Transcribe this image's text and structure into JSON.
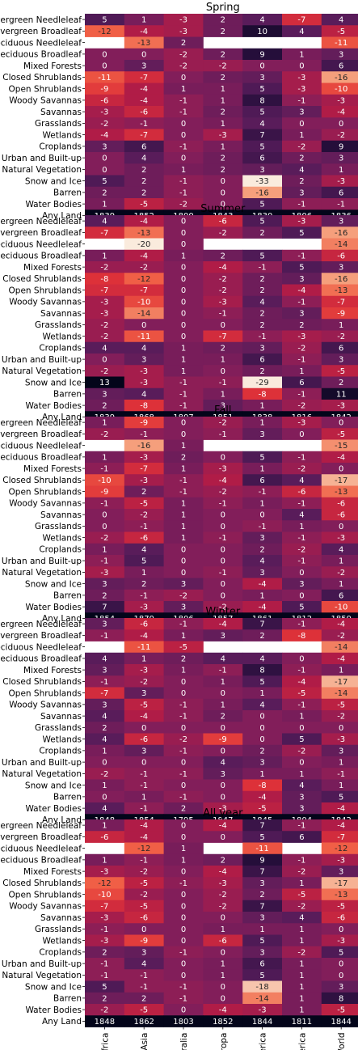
{
  "chart_data": {
    "type": "heatmap",
    "columns": [
      "Africa",
      "Asia",
      "Australia",
      "Europa",
      "N. America",
      "S. America",
      "World"
    ],
    "rows": [
      "Evergreen Needleleaf",
      "Evergreen Broadleaf",
      "Deciduous Needleleaf",
      "Deciduous Broadleaf",
      "Mixed Forests",
      "Closed Shrublands",
      "Open Shrublands",
      "Woody Savannas",
      "Savannas",
      "Grasslands",
      "Wetlands",
      "Croplands",
      "Urban and Built-up",
      "Natural Vegetation",
      "Snow and Ice",
      "Barren",
      "Water Bodies",
      "Any Land"
    ],
    "color_range": [
      -20,
      13
    ],
    "panels": [
      {
        "title": "Spring",
        "values": [
          [
            5,
            1,
            -3,
            2,
            4,
            -7,
            4
          ],
          [
            -12,
            -4,
            -3,
            2,
            10,
            4,
            -5
          ],
          [
            null,
            -13,
            2,
            null,
            null,
            null,
            -11
          ],
          [
            0,
            0,
            -2,
            2,
            9,
            1,
            3
          ],
          [
            0,
            3,
            -2,
            -2,
            0,
            0,
            6
          ],
          [
            -11,
            -7,
            0,
            2,
            3,
            -3,
            -16
          ],
          [
            -9,
            -4,
            1,
            1,
            5,
            -3,
            -10
          ],
          [
            -6,
            -4,
            -1,
            1,
            8,
            -1,
            -3
          ],
          [
            -3,
            -6,
            -1,
            2,
            5,
            3,
            -4
          ],
          [
            -2,
            -1,
            0,
            1,
            4,
            0,
            0
          ],
          [
            -4,
            -7,
            0,
            -3,
            7,
            1,
            -2
          ],
          [
            3,
            6,
            -1,
            1,
            5,
            -2,
            9
          ],
          [
            0,
            4,
            0,
            2,
            6,
            2,
            3
          ],
          [
            0,
            2,
            1,
            2,
            3,
            4,
            1
          ],
          [
            5,
            2,
            -1,
            0,
            -33,
            2,
            -3
          ],
          [
            2,
            2,
            -1,
            0,
            -16,
            3,
            6
          ],
          [
            1,
            -5,
            -2,
            0,
            5,
            -1,
            -1
          ],
          [
            1839,
            1852,
            1800,
            1843,
            1830,
            1806,
            1836
          ]
        ]
      },
      {
        "title": "Summer",
        "values": [
          [
            4,
            -4,
            0,
            -6,
            5,
            -3,
            3
          ],
          [
            -7,
            -13,
            0,
            -2,
            2,
            5,
            -16
          ],
          [
            null,
            -20,
            0,
            null,
            null,
            null,
            -14
          ],
          [
            1,
            -4,
            1,
            2,
            5,
            -1,
            -6
          ],
          [
            -2,
            -2,
            0,
            -4,
            -1,
            5,
            3
          ],
          [
            -8,
            -12,
            0,
            -2,
            2,
            3,
            -16
          ],
          [
            -7,
            -7,
            0,
            -2,
            2,
            -4,
            -13
          ],
          [
            -3,
            -10,
            0,
            -3,
            4,
            -1,
            -7
          ],
          [
            -3,
            -14,
            0,
            -1,
            2,
            3,
            -9
          ],
          [
            -2,
            0,
            0,
            0,
            2,
            2,
            1
          ],
          [
            -2,
            -11,
            0,
            -7,
            -1,
            -3,
            -2
          ],
          [
            4,
            4,
            1,
            2,
            3,
            -2,
            6
          ],
          [
            0,
            3,
            1,
            1,
            6,
            -1,
            3
          ],
          [
            -2,
            -3,
            1,
            0,
            2,
            1,
            -5
          ],
          [
            13,
            -3,
            -1,
            -1,
            -29,
            6,
            2
          ],
          [
            3,
            4,
            -1,
            1,
            -8,
            -1,
            11
          ],
          [
            2,
            -8,
            -1,
            3,
            1,
            -2,
            -3
          ],
          [
            1839,
            1868,
            1807,
            1851,
            1838,
            1816,
            1842
          ]
        ]
      },
      {
        "title": "Fall",
        "values": [
          [
            1,
            -9,
            0,
            -2,
            1,
            -3,
            0
          ],
          [
            -2,
            -1,
            0,
            -1,
            3,
            0,
            -5
          ],
          [
            null,
            -16,
            1,
            null,
            null,
            null,
            -15
          ],
          [
            1,
            -3,
            2,
            0,
            5,
            -1,
            -4
          ],
          [
            -1,
            -7,
            1,
            -3,
            1,
            -2,
            0
          ],
          [
            -10,
            -3,
            -1,
            -4,
            6,
            4,
            -17
          ],
          [
            -9,
            2,
            -1,
            -2,
            -1,
            -6,
            -13
          ],
          [
            -1,
            -5,
            1,
            -1,
            1,
            -1,
            -6
          ],
          [
            0,
            -2,
            1,
            0,
            0,
            4,
            -6
          ],
          [
            0,
            -1,
            1,
            0,
            -1,
            1,
            0
          ],
          [
            -2,
            -6,
            1,
            -1,
            3,
            -1,
            -3
          ],
          [
            1,
            4,
            0,
            0,
            2,
            -2,
            4
          ],
          [
            -1,
            5,
            0,
            0,
            4,
            -1,
            1
          ],
          [
            -3,
            1,
            0,
            -1,
            3,
            0,
            -2
          ],
          [
            3,
            2,
            3,
            0,
            -4,
            3,
            1
          ],
          [
            2,
            -1,
            -2,
            0,
            1,
            0,
            6
          ],
          [
            7,
            -3,
            3,
            -2,
            -4,
            5,
            -10
          ],
          [
            1854,
            1870,
            1806,
            1857,
            1861,
            1812,
            1850
          ]
        ]
      },
      {
        "title": "Winter",
        "values": [
          [
            3,
            -6,
            -1,
            -4,
            7,
            -1,
            -4
          ],
          [
            -1,
            -4,
            1,
            3,
            2,
            -8,
            -2
          ],
          [
            null,
            -11,
            -5,
            null,
            null,
            null,
            -14
          ],
          [
            4,
            1,
            2,
            4,
            4,
            0,
            -4
          ],
          [
            3,
            -3,
            1,
            -1,
            8,
            -1,
            1
          ],
          [
            -1,
            -2,
            0,
            1,
            5,
            -4,
            -17
          ],
          [
            -7,
            3,
            0,
            0,
            1,
            -5,
            -14
          ],
          [
            3,
            -5,
            -1,
            1,
            4,
            -1,
            -5
          ],
          [
            4,
            -4,
            -1,
            2,
            0,
            1,
            -2
          ],
          [
            2,
            0,
            0,
            0,
            0,
            0,
            0
          ],
          [
            4,
            -6,
            -2,
            -9,
            0,
            5,
            -3
          ],
          [
            1,
            3,
            -1,
            0,
            2,
            -2,
            3
          ],
          [
            0,
            0,
            0,
            4,
            3,
            0,
            1
          ],
          [
            -2,
            -1,
            -1,
            3,
            1,
            1,
            -1
          ],
          [
            1,
            -1,
            0,
            0,
            -8,
            4,
            1
          ],
          [
            0,
            1,
            -1,
            0,
            -4,
            3,
            5
          ],
          [
            4,
            -1,
            2,
            -3,
            -5,
            3,
            -4
          ],
          [
            1848,
            1854,
            1795,
            1847,
            1845,
            1804,
            1842
          ]
        ]
      },
      {
        "title": "All year",
        "values": [
          [
            1,
            -4,
            0,
            -4,
            7,
            -1,
            -4
          ],
          [
            -6,
            -4,
            0,
            0,
            5,
            6,
            -7
          ],
          [
            null,
            -12,
            1,
            null,
            -11,
            null,
            -12
          ],
          [
            1,
            -1,
            1,
            2,
            9,
            -1,
            -3
          ],
          [
            -3,
            -2,
            0,
            -4,
            7,
            -2,
            3
          ],
          [
            -12,
            -5,
            -1,
            -3,
            3,
            1,
            -17
          ],
          [
            -10,
            -2,
            0,
            -2,
            2,
            -5,
            -13
          ],
          [
            -7,
            -5,
            0,
            -2,
            7,
            -2,
            -5
          ],
          [
            -3,
            -6,
            0,
            0,
            3,
            4,
            -6
          ],
          [
            -1,
            0,
            0,
            1,
            1,
            1,
            0
          ],
          [
            -3,
            -9,
            0,
            -6,
            5,
            1,
            -3
          ],
          [
            2,
            3,
            -1,
            0,
            3,
            -2,
            5
          ],
          [
            -1,
            4,
            0,
            1,
            6,
            1,
            0
          ],
          [
            -1,
            -1,
            0,
            1,
            5,
            1,
            0
          ],
          [
            5,
            -1,
            -1,
            0,
            -18,
            1,
            3
          ],
          [
            2,
            2,
            -1,
            0,
            -14,
            1,
            8
          ],
          [
            -2,
            -5,
            0,
            -4,
            -3,
            1,
            -5
          ],
          [
            1848,
            1862,
            1803,
            1852,
            1844,
            1811,
            1844
          ]
        ]
      }
    ]
  }
}
